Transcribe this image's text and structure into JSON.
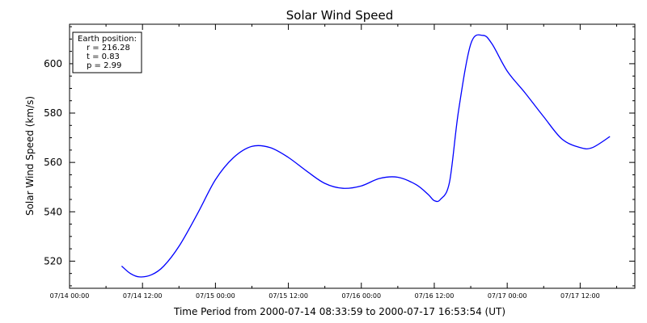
{
  "chart_data": {
    "type": "line",
    "title": "Solar Wind Speed",
    "xlabel": "Time Period from 2000-07-14 08:33:59 to 2000-07-17 16:53:54 (UT)",
    "ylabel": "Solar Wind Speed (km/s)",
    "xlim": [
      "2000-07-14 00:00",
      "2000-07-17 21:00"
    ],
    "ylim": [
      509,
      616
    ],
    "x_ticks": [
      "07/14 00:00",
      "07/14 12:00",
      "07/15 00:00",
      "07/15 12:00",
      "07/16 00:00",
      "07/16 12:00",
      "07/17 00:00",
      "07/17 12:00"
    ],
    "y_ticks": [
      520,
      540,
      560,
      580,
      600
    ],
    "grid": false,
    "color": "#0000ff",
    "annotation": {
      "heading": "Earth position:",
      "lines": [
        "r = 216.28",
        "t = 0.83",
        "p = 2.99"
      ]
    },
    "series": [
      {
        "x": [
          "2000-07-14 08:34",
          "2000-07-14 10:00",
          "2000-07-14 11:30",
          "2000-07-14 13:30",
          "2000-07-14 15:30",
          "2000-07-14 18:00",
          "2000-07-14 21:00",
          "2000-07-15 00:00",
          "2000-07-15 03:00",
          "2000-07-15 06:00",
          "2000-07-15 09:00",
          "2000-07-15 12:00",
          "2000-07-15 15:00",
          "2000-07-15 18:00",
          "2000-07-15 21:00",
          "2000-07-16 00:00",
          "2000-07-16 03:00",
          "2000-07-16 06:00",
          "2000-07-16 09:00",
          "2000-07-16 11:00",
          "2000-07-16 12:00",
          "2000-07-16 13:00",
          "2000-07-16 14:30",
          "2000-07-16 16:00",
          "2000-07-16 18:00",
          "2000-07-16 20:00",
          "2000-07-16 21:30",
          "2000-07-17 00:00",
          "2000-07-17 03:00",
          "2000-07-17 06:00",
          "2000-07-17 09:00",
          "2000-07-17 12:00",
          "2000-07-17 14:00",
          "2000-07-17 16:54"
        ],
        "y": [
          518,
          515,
          513.6,
          514.5,
          518,
          526,
          539,
          553,
          562,
          566.5,
          566,
          562,
          556.5,
          551.5,
          549.5,
          550.5,
          553.5,
          554,
          551,
          547,
          544.5,
          545,
          552,
          581,
          608,
          611.5,
          608,
          597,
          588,
          578.5,
          569.5,
          566,
          566,
          570.5
        ]
      }
    ]
  }
}
